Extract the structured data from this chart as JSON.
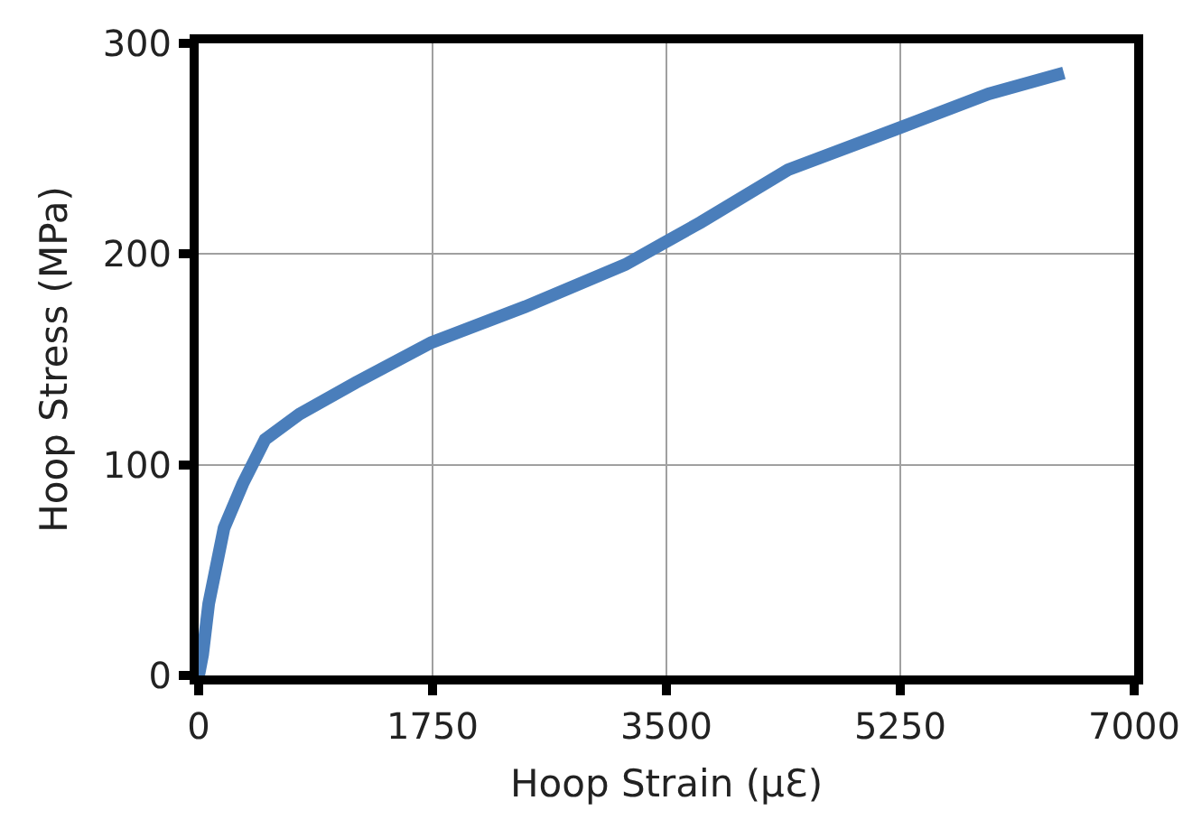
{
  "chart_data": {
    "type": "line",
    "xlabel": "Hoop Strain (µℇ)",
    "ylabel": "Hoop Stress (MPa)",
    "x": [
      0,
      30,
      75,
      190,
      330,
      497,
      754,
      1176,
      1740,
      2443,
      3192,
      3474,
      3755,
      4410,
      5208,
      5911,
      6474
    ],
    "series": [
      {
        "color": "#4a7ebb",
        "values": [
          0,
          10,
          34,
          70,
          91,
          112,
          124,
          139,
          158,
          175,
          195,
          205,
          215,
          240,
          259,
          276,
          286
        ]
      }
    ],
    "xlim": [
      0,
      7000
    ],
    "xticks": [
      0,
      1750,
      3500,
      5250,
      7000
    ],
    "ylim": [
      0,
      300
    ],
    "yticks": [
      0,
      100,
      200,
      300
    ],
    "grid": true,
    "legend": false,
    "marker": "none",
    "line_style": "solid"
  }
}
